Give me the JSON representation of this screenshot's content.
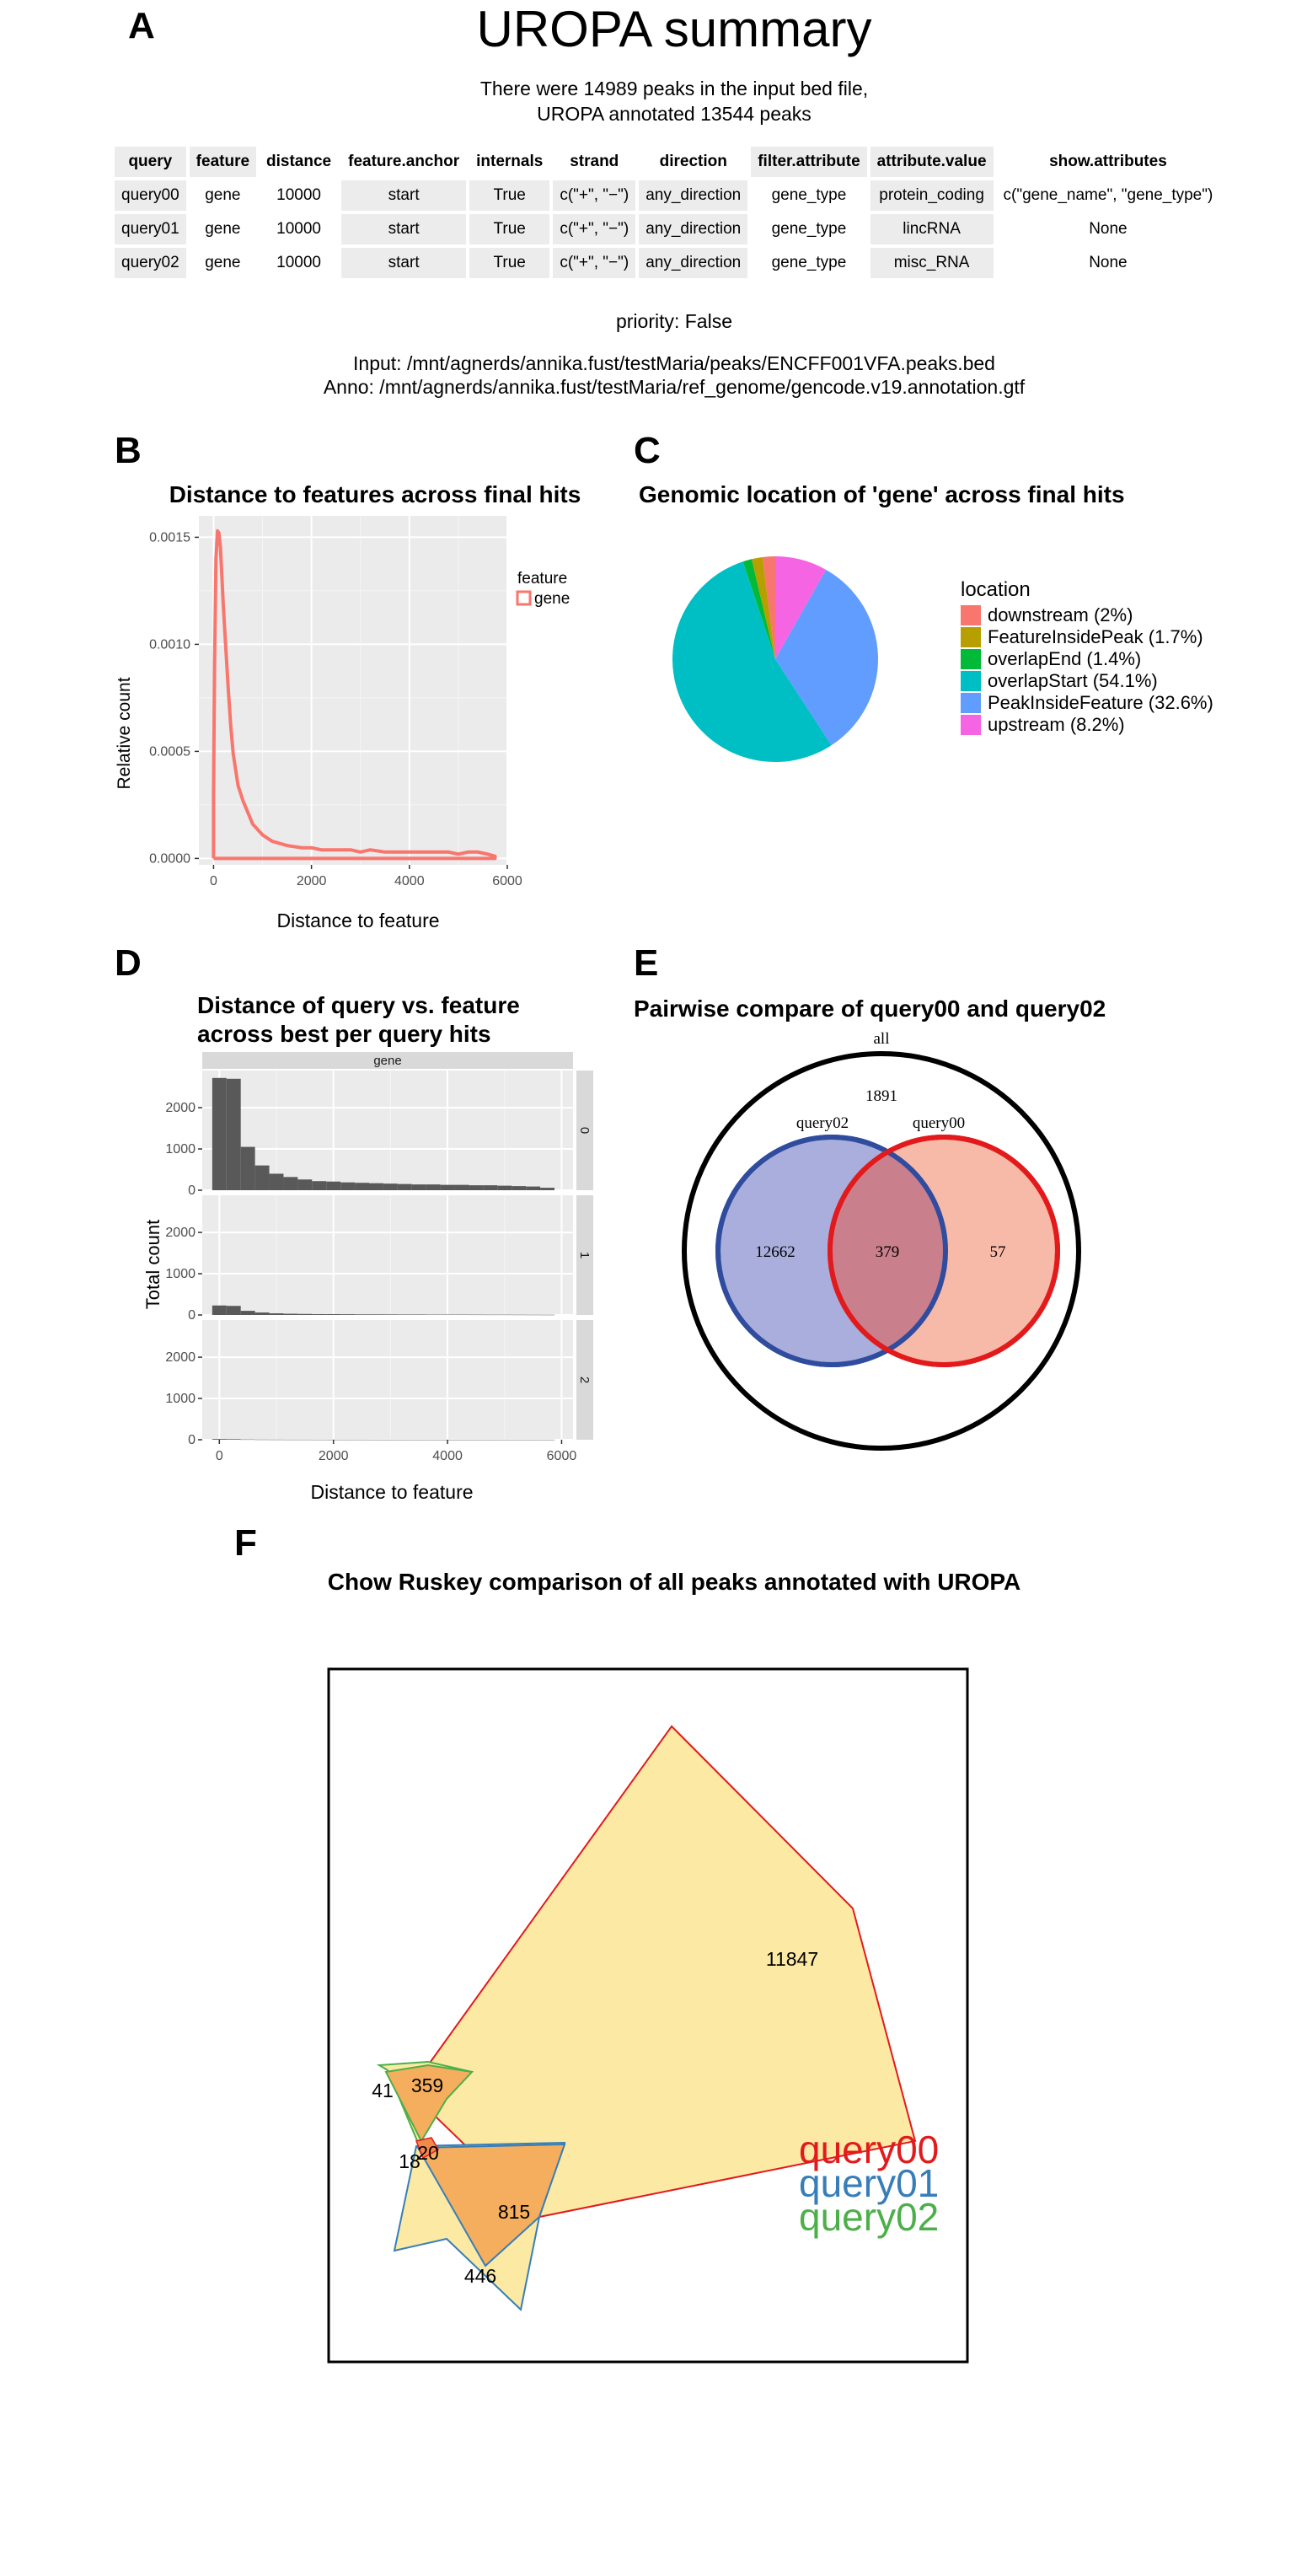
{
  "panels": {
    "a": {
      "letter": "A",
      "title": "UROPA summary",
      "line1": "There were 14989 peaks in the input bed file,",
      "line2": "UROPA annotated 13544 peaks",
      "table": {
        "headers": [
          "query",
          "feature",
          "distance",
          "feature.anchor",
          "internals",
          "strand",
          "direction",
          "filter.attribute",
          "attribute.value",
          "show.attributes"
        ],
        "rows": [
          [
            "query00",
            "gene",
            "10000",
            "start",
            "True",
            "c(\"+\", \"−\")",
            "any_direction",
            "gene_type",
            "protein_coding",
            "c(\"gene_name\", \"gene_type\")"
          ],
          [
            "query01",
            "gene",
            "10000",
            "start",
            "True",
            "c(\"+\", \"−\")",
            "any_direction",
            "gene_type",
            "lincRNA",
            "None"
          ],
          [
            "query02",
            "gene",
            "10000",
            "start",
            "True",
            "c(\"+\", \"−\")",
            "any_direction",
            "gene_type",
            "misc_RNA",
            "None"
          ]
        ]
      },
      "priority": "priority: False",
      "input": "Input: /mnt/agnerds/annika.fust/testMaria/peaks/ENCFF001VFA.peaks.bed",
      "anno": "Anno: /mnt/agnerds/annika.fust/testMaria/ref_genome/gencode.v19.annotation.gtf"
    },
    "b": {
      "letter": "B"
    },
    "c": {
      "letter": "C"
    },
    "d": {
      "letter": "D"
    },
    "e": {
      "letter": "E"
    },
    "f": {
      "letter": "F"
    }
  },
  "chart_data": [
    {
      "id": "B",
      "type": "line",
      "title": "Distance to features across final hits",
      "xlabel": "Distance to feature",
      "ylabel": "Relative count",
      "xlim": [
        -300,
        6000
      ],
      "ylim": [
        -3e-05,
        0.0016
      ],
      "xticks": [
        0,
        2000,
        4000,
        6000
      ],
      "yticks": [
        0.0,
        0.0005,
        0.001,
        0.0015
      ],
      "ytick_labels": [
        "0.0000",
        "0.0005",
        "0.0010",
        "0.0015"
      ],
      "legend": {
        "title": "feature",
        "entries": [
          "gene"
        ],
        "position": "right"
      },
      "grid": true,
      "series": [
        {
          "name": "gene",
          "color": "#F8766D",
          "x": [
            0,
            0,
            20,
            50,
            80,
            110,
            140,
            170,
            200,
            250,
            300,
            350,
            400,
            500,
            600,
            800,
            1000,
            1200,
            1500,
            1800,
            2000,
            2200,
            2500,
            2800,
            3000,
            3200,
            3500,
            3800,
            4000,
            4200,
            4500,
            4800,
            5000,
            5200,
            5400,
            5600,
            5750,
            5750,
            0
          ],
          "y": [
            0,
            0.0003,
            0.0009,
            0.0014,
            0.00153,
            0.00152,
            0.00145,
            0.00132,
            0.00118,
            0.00098,
            0.00079,
            0.00062,
            0.00049,
            0.00034,
            0.00027,
            0.00016,
            0.00011,
            8e-05,
            6e-05,
            5e-05,
            5e-05,
            4e-05,
            4e-05,
            4e-05,
            3e-05,
            4e-05,
            3e-05,
            3e-05,
            3e-05,
            3e-05,
            3e-05,
            3e-05,
            2e-05,
            3e-05,
            3e-05,
            2e-05,
            1e-05,
            0,
            0
          ]
        }
      ]
    },
    {
      "id": "C",
      "type": "pie",
      "title": "Genomic location of 'gene' across final hits",
      "legend": {
        "title": "location",
        "position": "right"
      },
      "slices": [
        {
          "label": "downstream (2%)",
          "value": 2.0,
          "color": "#F8766D"
        },
        {
          "label": "FeatureInsidePeak (1.7%)",
          "value": 1.7,
          "color": "#B79F00"
        },
        {
          "label": "overlapEnd (1.4%)",
          "value": 1.4,
          "color": "#00BA38"
        },
        {
          "label": "overlapStart (54.1%)",
          "value": 54.1,
          "color": "#00BFC4"
        },
        {
          "label": "PeakInsideFeature (32.6%)",
          "value": 32.6,
          "color": "#619CFF"
        },
        {
          "label": "upstream (8.2%)",
          "value": 8.2,
          "color": "#F564E3"
        }
      ]
    },
    {
      "id": "D",
      "type": "bar",
      "title_lines": [
        "Distance of query vs. feature",
        "across best per query hits"
      ],
      "xlabel": "Distance to feature",
      "ylabel": "Total count",
      "xlim": [
        -300,
        6200
      ],
      "ylim": [
        0,
        2900
      ],
      "xticks": [
        0,
        2000,
        4000,
        6000
      ],
      "yticks": [
        0,
        1000,
        2000
      ],
      "column_strip": "gene",
      "bin_width": 250,
      "bin_start": -125,
      "facets": [
        {
          "label": "0",
          "values": [
            2720,
            2700,
            1050,
            600,
            400,
            320,
            260,
            220,
            210,
            190,
            180,
            170,
            160,
            150,
            140,
            140,
            130,
            130,
            120,
            120,
            110,
            100,
            90,
            60
          ]
        },
        {
          "label": "1",
          "values": [
            230,
            220,
            100,
            60,
            40,
            30,
            25,
            20,
            20,
            18,
            15,
            15,
            14,
            12,
            12,
            10,
            10,
            10,
            9,
            8,
            8,
            7,
            6,
            5
          ]
        },
        {
          "label": "2",
          "values": [
            18,
            15,
            8,
            5,
            4,
            3,
            3,
            2,
            2,
            2,
            2,
            1,
            1,
            1,
            1,
            1,
            1,
            1,
            1,
            1,
            1,
            1,
            1,
            1
          ]
        }
      ]
    },
    {
      "id": "E",
      "type": "venn",
      "title": "Pairwise compare of query00 and query02",
      "outer_label": "all",
      "outer_value": "1891",
      "sets": [
        {
          "name": "query02",
          "only": "12662",
          "color": "#2F4C9E",
          "fill": "#A9AEDC"
        },
        {
          "name": "query00",
          "only": "57",
          "color": "#E31A1C",
          "fill": "#F6B19E"
        }
      ],
      "intersection": "379"
    },
    {
      "id": "F",
      "type": "venn",
      "title": "Chow Ruskey comparison of all peaks annotated with UROPA",
      "regions": [
        {
          "label": "11847",
          "value": 11847
        },
        {
          "label": "359",
          "value": 359
        },
        {
          "label": "41",
          "value": 41
        },
        {
          "label": "20",
          "value": 20
        },
        {
          "label": "18",
          "value": 18
        },
        {
          "label": "815",
          "value": 815
        },
        {
          "label": "446",
          "value": 446
        }
      ],
      "legend": [
        {
          "name": "query00",
          "color": "#E31A1C"
        },
        {
          "name": "query01",
          "color": "#377EB8"
        },
        {
          "name": "query02",
          "color": "#4DAF4A"
        }
      ]
    }
  ]
}
